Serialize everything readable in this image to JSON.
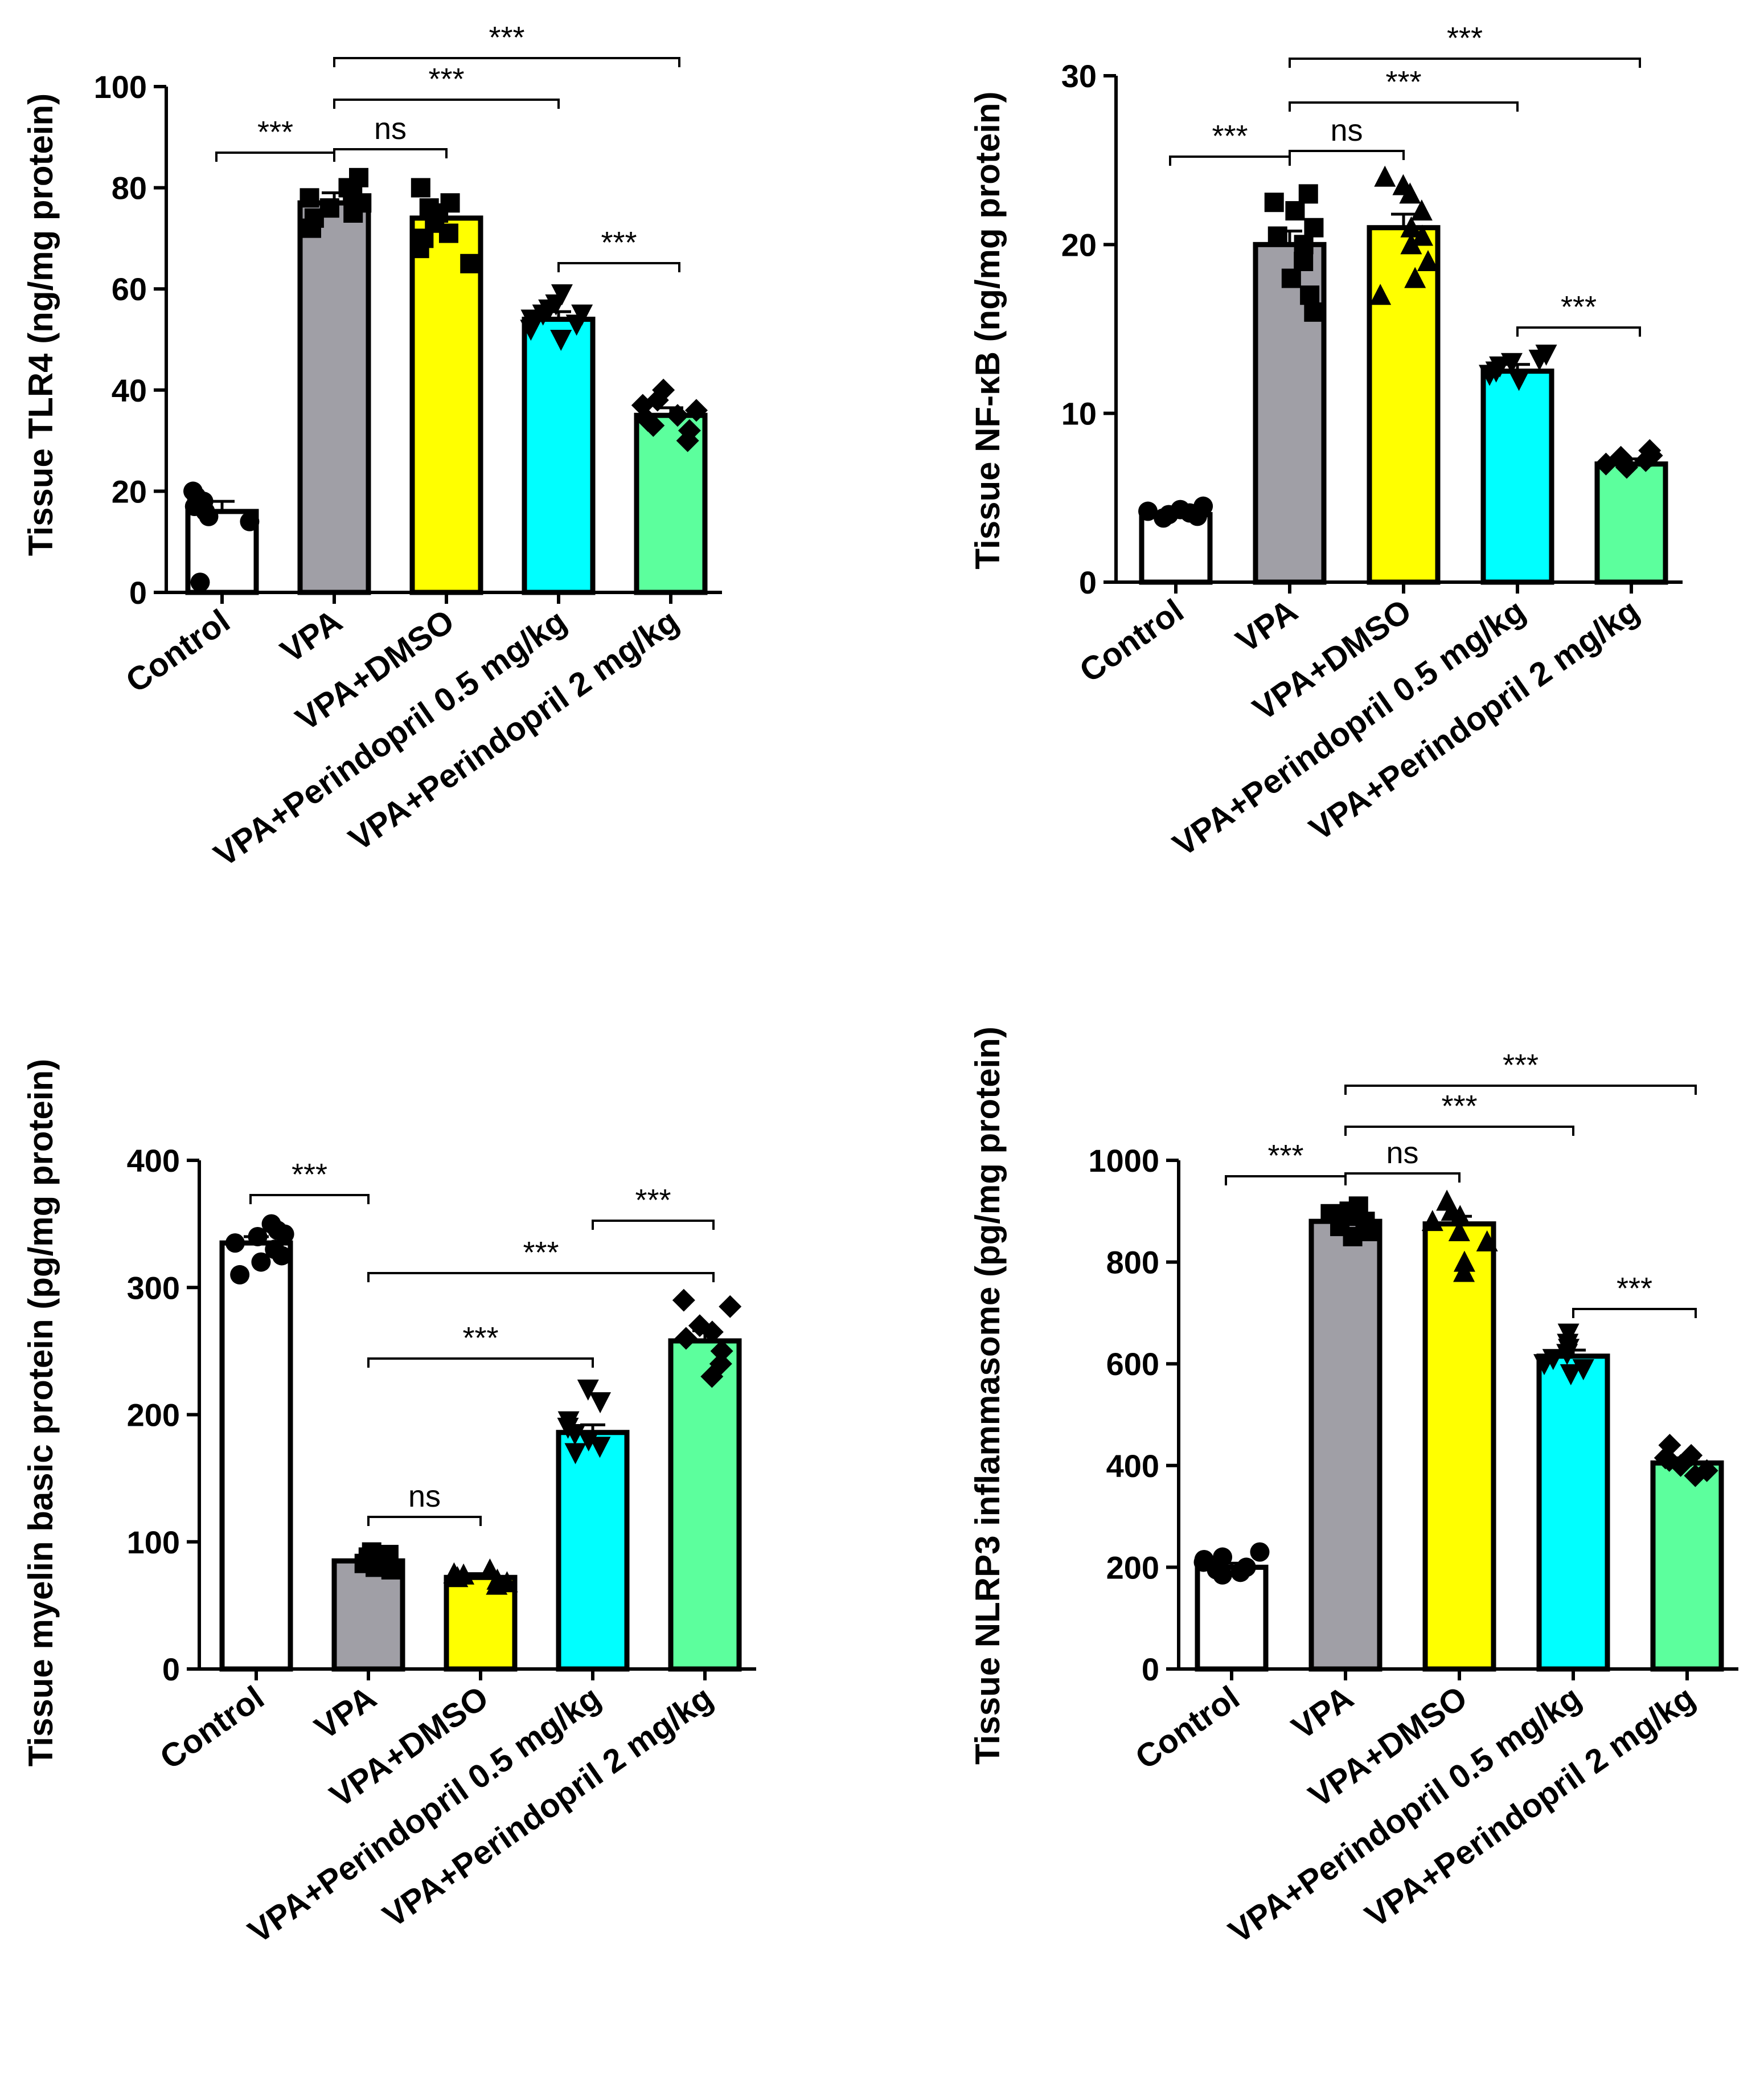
{
  "colors": {
    "Control": "#ffffff",
    "VPA": "#a09fa6",
    "VPA+DMSO": "#ffff00",
    "VPA+Perindopril 0.5 mg/kg": "#00ffff",
    "VPA+Perindopril 2 mg/kg": "#5cff9d",
    "outline": "#000000"
  },
  "chart_data": [
    {
      "type": "bar",
      "id": "tlr4",
      "ylabel": "Tissue TLR4 (ng/mg protein)",
      "ylim": [
        0,
        100
      ],
      "yticks": [
        0,
        20,
        40,
        60,
        80,
        100
      ],
      "categories": [
        "Control",
        "VPA",
        "VPA+DMSO",
        "VPA+Perindopril 0.5 mg/kg",
        "VPA+Perindopril 2 mg/kg"
      ],
      "values": [
        16,
        77,
        74,
        54,
        35
      ],
      "errors": [
        2,
        2,
        2,
        1.5,
        1.5
      ],
      "points": [
        [
          20,
          18,
          17,
          15,
          16,
          19,
          14,
          2
        ],
        [
          82,
          80,
          78,
          76,
          75,
          74,
          79,
          72,
          77
        ],
        [
          80,
          77,
          75,
          73,
          71,
          70,
          68,
          65,
          76
        ],
        [
          59,
          57,
          56,
          55,
          54,
          53,
          52,
          50,
          55
        ],
        [
          40,
          38,
          36,
          35,
          34,
          33,
          32,
          30,
          37
        ]
      ],
      "significance": [
        {
          "from": 0,
          "to": 1,
          "label": "***",
          "level": 0
        },
        {
          "from": 1,
          "to": 2,
          "label": "ns",
          "level": 0
        },
        {
          "from": 1,
          "to": 3,
          "label": "***",
          "level": 1
        },
        {
          "from": 1,
          "to": 4,
          "label": "***",
          "level": 2
        },
        {
          "from": 3,
          "to": 4,
          "label": "***",
          "level": -1
        }
      ]
    },
    {
      "type": "bar",
      "id": "nfkb",
      "ylabel": "Tissue NF-κB (ng/mg protein)",
      "ylim": [
        0,
        30
      ],
      "yticks": [
        0,
        10,
        20,
        30
      ],
      "categories": [
        "Control",
        "VPA",
        "VPA+DMSO",
        "VPA+Perindopril 0.5 mg/kg",
        "VPA+Perindopril 2 mg/kg"
      ],
      "values": [
        4,
        20,
        21,
        12.5,
        7
      ],
      "errors": [
        0.3,
        0.8,
        0.8,
        0.4,
        0.3
      ],
      "points": [
        [
          4.5,
          4.2,
          4.0,
          3.8,
          4.3,
          3.9,
          4.1
        ],
        [
          23,
          22,
          21,
          20,
          19,
          18,
          17,
          16,
          22.5,
          20.5
        ],
        [
          24,
          23,
          22,
          21,
          20,
          19,
          18,
          17,
          23.5,
          20.5
        ],
        [
          13.5,
          13,
          12.8,
          12.5,
          12.3,
          12,
          13.2
        ],
        [
          7.8,
          7.5,
          7.2,
          7,
          6.8,
          7.4
        ]
      ],
      "significance": [
        {
          "from": 0,
          "to": 1,
          "label": "***",
          "level": 0
        },
        {
          "from": 1,
          "to": 2,
          "label": "ns",
          "level": 0
        },
        {
          "from": 1,
          "to": 3,
          "label": "***",
          "level": 1
        },
        {
          "from": 1,
          "to": 4,
          "label": "***",
          "level": 2
        },
        {
          "from": 3,
          "to": 4,
          "label": "***",
          "level": -1
        }
      ]
    },
    {
      "type": "bar",
      "id": "mbp",
      "ylabel": "Tissue myelin basic protein (pg/mg protein)",
      "ylim": [
        0,
        400
      ],
      "yticks": [
        0,
        100,
        200,
        300,
        400
      ],
      "categories": [
        "Control",
        "VPA",
        "VPA+DMSO",
        "VPA+Perindopril 0.5 mg/kg",
        "VPA+Perindopril 2 mg/kg"
      ],
      "values": [
        335,
        85,
        72,
        186,
        258
      ],
      "errors": [
        5,
        4,
        3,
        6,
        8
      ],
      "points": [
        [
          350,
          345,
          340,
          335,
          330,
          325,
          320,
          310,
          342
        ],
        [
          92,
          90,
          88,
          85,
          83,
          80,
          78,
          87
        ],
        [
          78,
          75,
          72,
          70,
          68,
          66,
          74
        ],
        [
          220,
          210,
          195,
          185,
          180,
          175,
          170,
          190
        ],
        [
          290,
          285,
          270,
          260,
          250,
          240,
          230,
          265
        ]
      ],
      "significance": [
        {
          "from": 0,
          "to": 1,
          "label": "***",
          "level": 0
        },
        {
          "from": 1,
          "to": 2,
          "label": "ns",
          "level": 0
        },
        {
          "from": 1,
          "to": 3,
          "label": "***",
          "level": 1
        },
        {
          "from": 1,
          "to": 4,
          "label": "***",
          "level": 2
        },
        {
          "from": 3,
          "to": 4,
          "label": "***",
          "level": 3
        }
      ]
    },
    {
      "type": "bar",
      "id": "nlrp3",
      "ylabel": "Tissue NLRP3 inflammasome (pg/mg protein)",
      "ylim": [
        0,
        1000
      ],
      "yticks": [
        0,
        200,
        400,
        600,
        800,
        1000
      ],
      "categories": [
        "Control",
        "VPA",
        "VPA+DMSO",
        "VPA+Perindopril 0.5 mg/kg",
        "VPA+Perindopril 2 mg/kg"
      ],
      "values": [
        200,
        880,
        875,
        615,
        405
      ],
      "errors": [
        8,
        12,
        15,
        12,
        10
      ],
      "points": [
        [
          230,
          220,
          210,
          200,
          195,
          190,
          185,
          215
        ],
        [
          910,
          900,
          890,
          880,
          870,
          860,
          850,
          895
        ],
        [
          920,
          900,
          880,
          860,
          840,
          800,
          780,
          890
        ],
        [
          660,
          640,
          620,
          610,
          600,
          590,
          580,
          630
        ],
        [
          440,
          420,
          410,
          400,
          390,
          380,
          415
        ]
      ],
      "significance": [
        {
          "from": 0,
          "to": 1,
          "label": "***",
          "level": 0
        },
        {
          "from": 1,
          "to": 2,
          "label": "ns",
          "level": 0
        },
        {
          "from": 1,
          "to": 3,
          "label": "***",
          "level": 1
        },
        {
          "from": 1,
          "to": 4,
          "label": "***",
          "level": 2
        },
        {
          "from": 3,
          "to": 4,
          "label": "***",
          "level": -1
        }
      ]
    }
  ]
}
